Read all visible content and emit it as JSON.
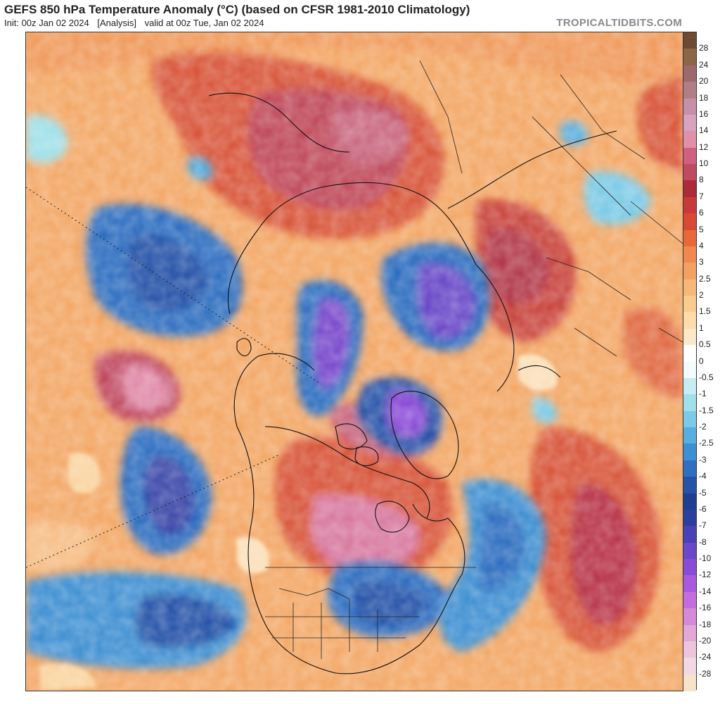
{
  "header": {
    "title": "GEFS 850 hPa Temperature Anomaly (°C) (based on CFSR 1981-2010 Climatology)",
    "init": "Init: 00z Jan 02 2024",
    "run_type": "[Analysis]",
    "valid": "valid at 00z Tue, Jan 02 2024",
    "brand": "TROPICALTIDBITS.COM"
  },
  "map": {
    "projection": "north-polar-stereographic",
    "variable": "850 hPa temperature anomaly",
    "units": "°C",
    "features": [
      "coastlines",
      "country-borders",
      "us-state-borders",
      "canada-province-borders"
    ]
  },
  "colorbar": {
    "labels": [
      "28",
      "24",
      "20",
      "18",
      "16",
      "14",
      "12",
      "10",
      "8",
      "7",
      "6",
      "5",
      "4",
      "3",
      "2.5",
      "2",
      "1.5",
      "1",
      "0.5",
      "0",
      "-0.5",
      "-1",
      "-1.5",
      "-2",
      "-2.5",
      "-3",
      "-4",
      "-5",
      "-6",
      "-7",
      "-8",
      "-10",
      "-12",
      "-14",
      "-16",
      "-18",
      "-20",
      "-24",
      "-28"
    ],
    "colors": [
      "#6e4a32",
      "#8f6548",
      "#9c6a6c",
      "#b07f86",
      "#c690a8",
      "#d7a3c0",
      "#e090a8",
      "#d06080",
      "#c04a60",
      "#ac2a3a",
      "#c83a3a",
      "#d84a35",
      "#e8683a",
      "#f08850",
      "#f3a163",
      "#f6b878",
      "#f8cc8e",
      "#fbdcaa",
      "#fde9c8",
      "#ffffff",
      "#f4fbfd",
      "#c6eef2",
      "#a0e0ea",
      "#7ccae6",
      "#58aede",
      "#3f90d2",
      "#2f6ec0",
      "#2652a8",
      "#1f3e90",
      "#2c3f9e",
      "#4842b6",
      "#6a48c8",
      "#8a4cd6",
      "#a85adf",
      "#c46ede",
      "#d48ad9",
      "#e2a8d8",
      "#ecc4dc",
      "#f2d8e2",
      "#f7e4c8"
    ]
  }
}
